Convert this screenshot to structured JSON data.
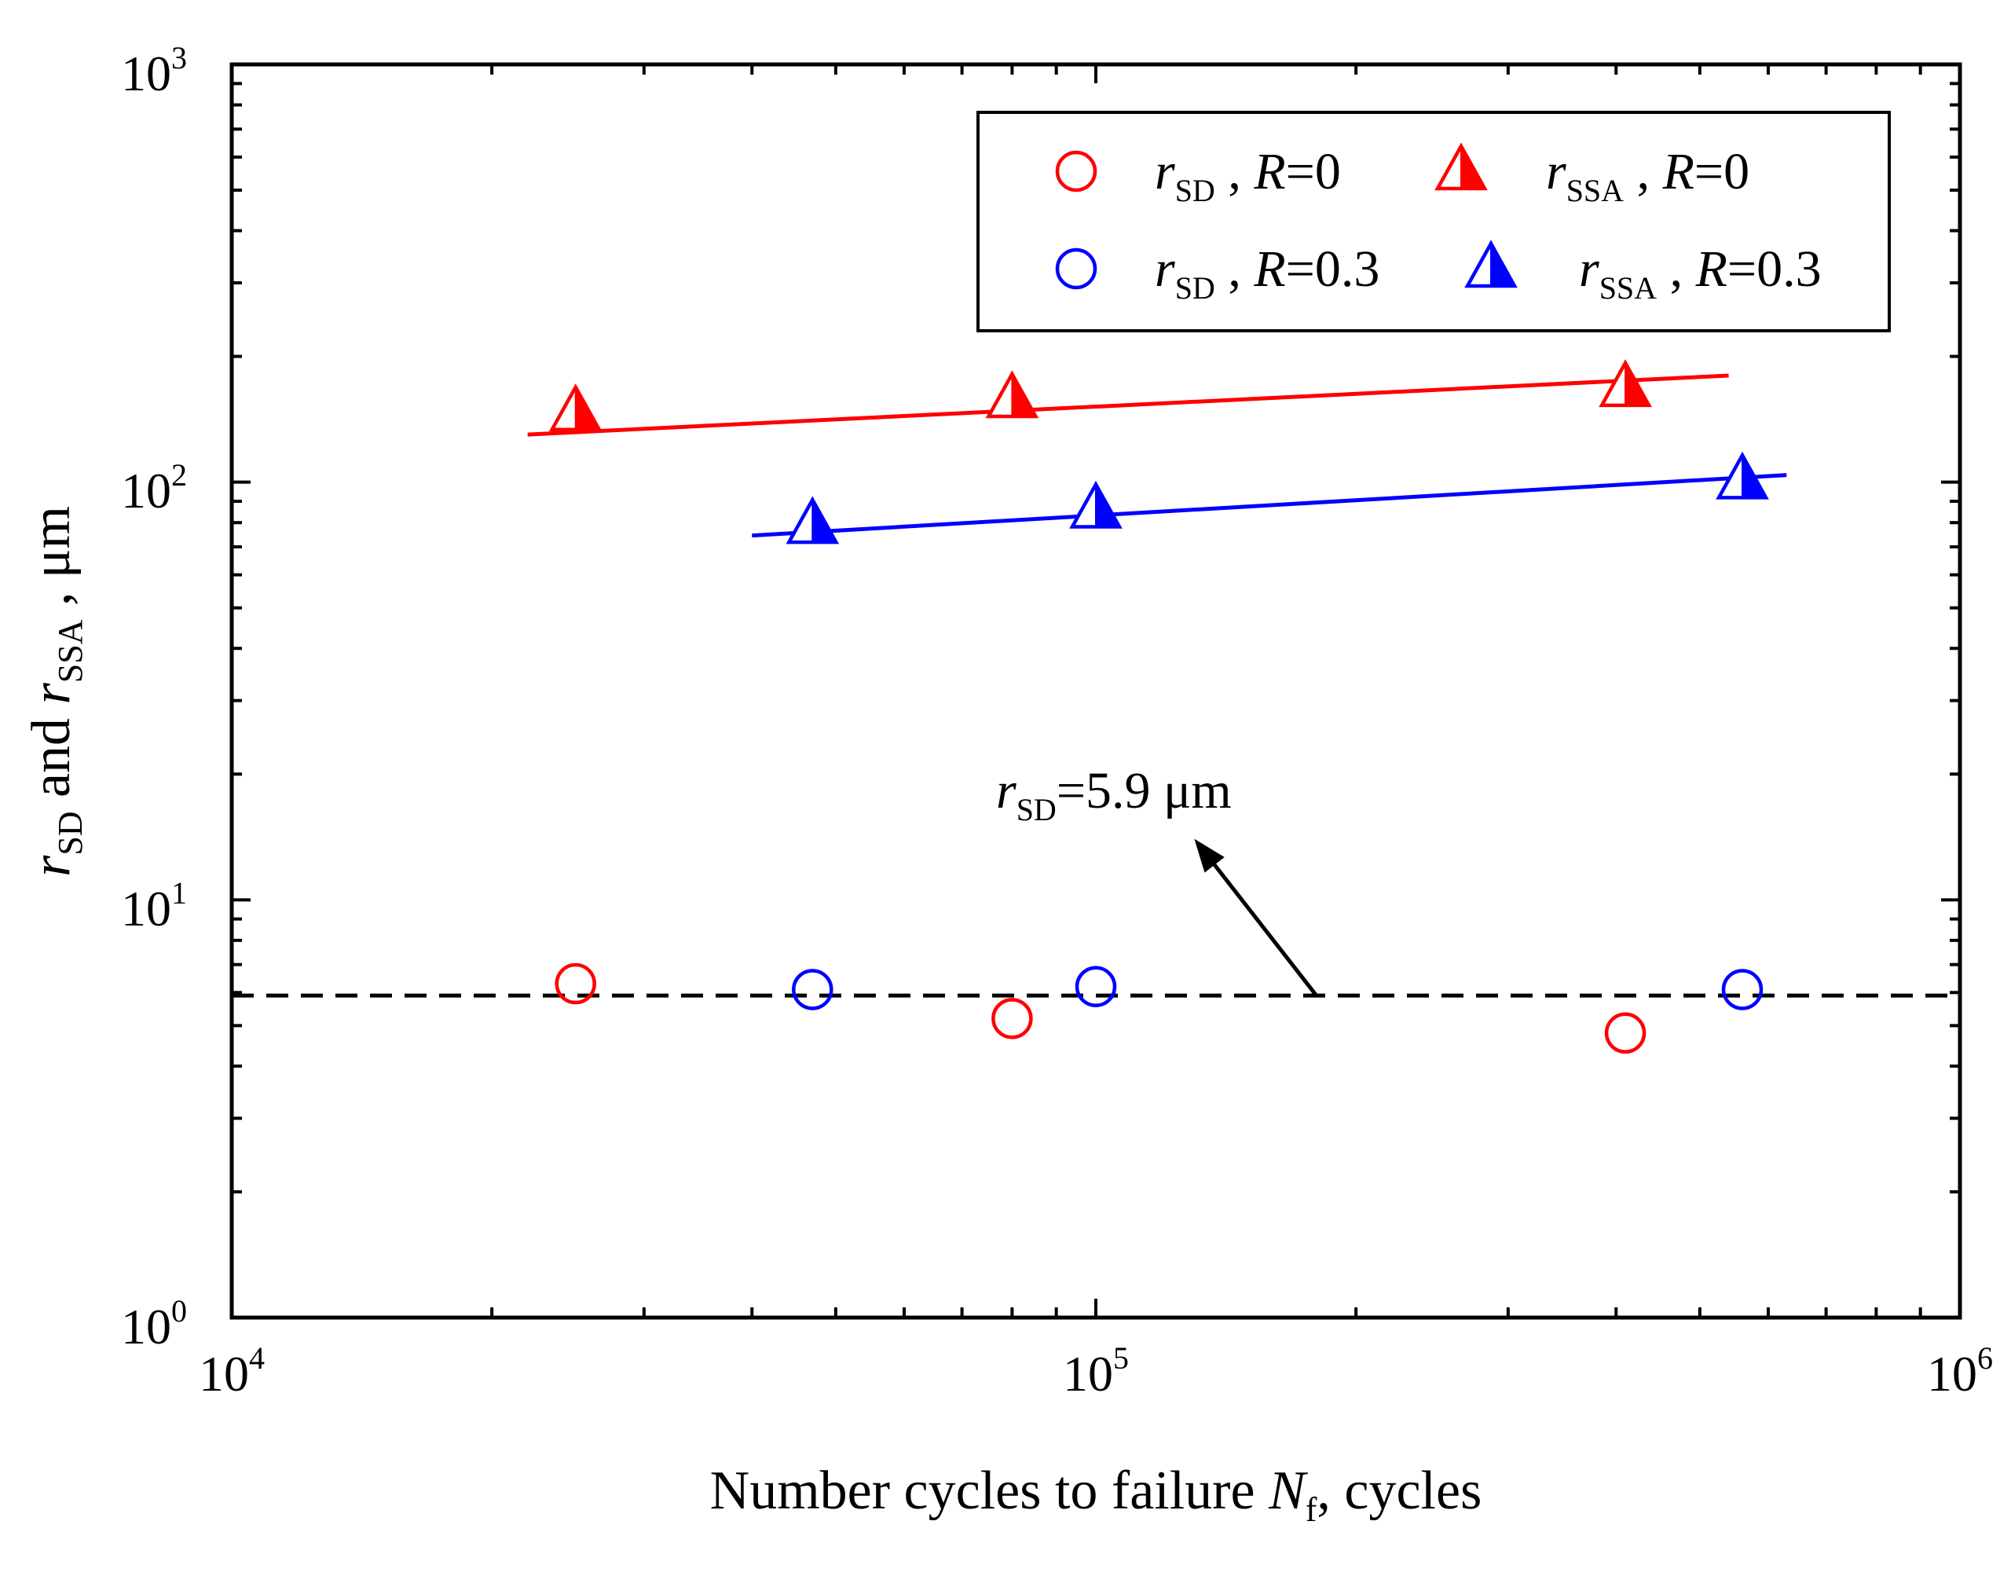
{
  "chart_data": {
    "type": "scatter",
    "x_scale": "log",
    "y_scale": "log",
    "xlim": [
      10000,
      1000000
    ],
    "ylim": [
      1,
      1000
    ],
    "x_ticks": [
      {
        "value": 10000,
        "base": "10",
        "exp": "4"
      },
      {
        "value": 100000,
        "base": "10",
        "exp": "5"
      },
      {
        "value": 1000000,
        "base": "10",
        "exp": "6"
      }
    ],
    "y_ticks": [
      {
        "value": 1,
        "base": "10",
        "exp": "0"
      },
      {
        "value": 10,
        "base": "10",
        "exp": "1"
      },
      {
        "value": 100,
        "base": "10",
        "exp": "2"
      },
      {
        "value": 1000,
        "base": "10",
        "exp": "3"
      }
    ],
    "xlabel": {
      "main": "Number cycles to failure ",
      "var": "N",
      "sub": "f",
      "tail": ", cycles"
    },
    "ylabel": {
      "r1": "r",
      "sub1": "SD",
      "mid": " and ",
      "r2": "r",
      "sub2": "SSA",
      "tail": " , μm"
    },
    "series": [
      {
        "name": "r_SD, R=0",
        "marker": "circle",
        "color": "#ff0000",
        "legend": {
          "r": "r",
          "sub": "SD",
          "sep": " , ",
          "R": "R",
          "val": "=0"
        },
        "points": [
          {
            "x": 25000,
            "y": 6.3
          },
          {
            "x": 80000,
            "y": 5.2
          },
          {
            "x": 410000,
            "y": 4.8
          }
        ]
      },
      {
        "name": "r_SSA, R=0",
        "marker": "half-triangle",
        "color": "#ff0000",
        "legend": {
          "r": "r",
          "sub": "SSA",
          "sep": " , ",
          "R": "R",
          "val": "=0"
        },
        "points": [
          {
            "x": 25000,
            "y": 147
          },
          {
            "x": 80000,
            "y": 158
          },
          {
            "x": 410000,
            "y": 168
          }
        ],
        "fit": [
          {
            "x": 22000,
            "y": 130
          },
          {
            "x": 540000,
            "y": 180
          }
        ]
      },
      {
        "name": "r_SD, R=0.3",
        "marker": "circle",
        "color": "#0000ff",
        "legend": {
          "r": "r",
          "sub": "SD",
          "sep": " , ",
          "R": "R",
          "val": "=0.3"
        },
        "points": [
          {
            "x": 47000,
            "y": 6.1
          },
          {
            "x": 100000,
            "y": 6.2
          },
          {
            "x": 560000,
            "y": 6.1
          }
        ]
      },
      {
        "name": "r_SSA, R=0.3",
        "marker": "half-triangle",
        "color": "#0000ff",
        "legend": {
          "r": "r",
          "sub": "SSA",
          "sep": " , ",
          "R": "R",
          "val": "=0.3"
        },
        "points": [
          {
            "x": 47000,
            "y": 79
          },
          {
            "x": 100000,
            "y": 86
          },
          {
            "x": 560000,
            "y": 101
          }
        ],
        "fit": [
          {
            "x": 40000,
            "y": 74.5
          },
          {
            "x": 630000,
            "y": 104
          }
        ]
      }
    ],
    "reference_line": {
      "y": 5.9,
      "style": "dashed",
      "color": "#000000"
    },
    "annotation": {
      "r": "r",
      "sub": "SD",
      "text": "=5.9 μm",
      "arrow_from": {
        "x": 180000,
        "y": 5.9
      },
      "arrow_to": {
        "x": 130000,
        "y": 14
      }
    },
    "legend_position": "top-right"
  }
}
